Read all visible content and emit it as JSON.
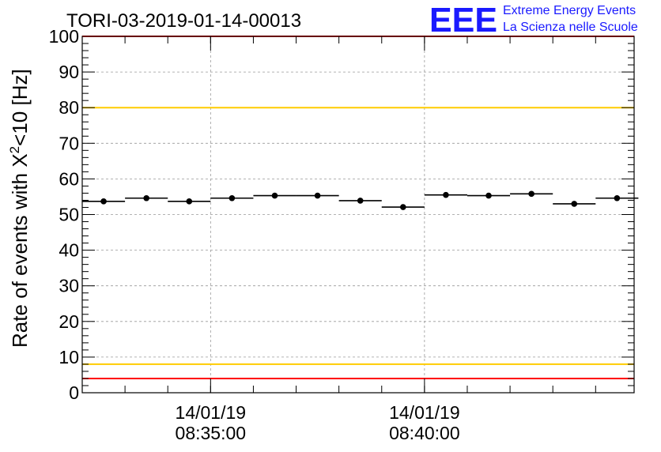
{
  "chart_data": {
    "type": "scatter",
    "title": "TORI-03-2019-01-14-00013",
    "ylabel_main": "Rate of events with X",
    "ylabel_sup": "2",
    "ylabel_tail": "<10 [Hz]",
    "xlabel": "",
    "ylim": [
      0,
      100
    ],
    "yticks": [
      "0",
      "10",
      "20",
      "30",
      "40",
      "50",
      "60",
      "70",
      "80",
      "90",
      "100"
    ],
    "xlim_minutes": [
      0,
      12.9
    ],
    "xticks": [
      {
        "minute": 3,
        "date": "14/01/19",
        "time": "08:35:00"
      },
      {
        "minute": 8,
        "date": "14/01/19",
        "time": "08:40:00"
      }
    ],
    "bin_width_minutes": 1,
    "points": [
      {
        "x": 0.5,
        "y": 53.7
      },
      {
        "x": 1.5,
        "y": 54.6
      },
      {
        "x": 2.5,
        "y": 53.7
      },
      {
        "x": 3.5,
        "y": 54.6
      },
      {
        "x": 4.5,
        "y": 55.3
      },
      {
        "x": 5.5,
        "y": 55.3
      },
      {
        "x": 6.5,
        "y": 53.9
      },
      {
        "x": 7.5,
        "y": 52.1
      },
      {
        "x": 8.5,
        "y": 55.5
      },
      {
        "x": 9.5,
        "y": 55.3
      },
      {
        "x": 10.5,
        "y": 55.8
      },
      {
        "x": 11.5,
        "y": 53.0
      },
      {
        "x": 12.5,
        "y": 54.6
      }
    ],
    "reference_lines": [
      {
        "y": 100,
        "color": "#ff0000"
      },
      {
        "y": 80,
        "color": "#ffcc00"
      },
      {
        "y": 8,
        "color": "#ffcc00"
      },
      {
        "y": 4,
        "color": "#ff0000"
      }
    ],
    "grid": true
  },
  "logo": {
    "letters": "EEE",
    "line1": "Extreme Energy Events",
    "line2": "La Scienza nelle Scuole",
    "color": "#1a1aff"
  }
}
